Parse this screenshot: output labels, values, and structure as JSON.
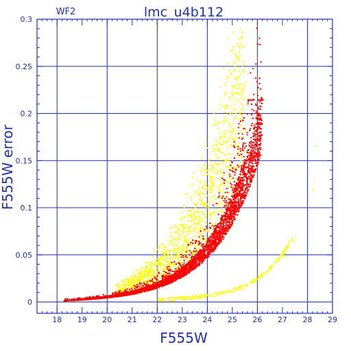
{
  "chart_data": {
    "type": "scatter",
    "title": "lmc_u4b112",
    "corner_label": "WF2",
    "xlabel": "F555W",
    "ylabel": "F555W error",
    "xlim": [
      17.2,
      29
    ],
    "ylim": [
      -0.012,
      0.3
    ],
    "x_ticks": [
      18,
      19,
      20,
      21,
      22,
      23,
      24,
      25,
      26,
      27,
      28,
      29
    ],
    "y_ticks": [
      0,
      0.05,
      0.1,
      0.15,
      0.2,
      0.25,
      0.3
    ],
    "y_tick_labels": [
      "0",
      "0.05",
      "0.1",
      "0.15",
      "0.2",
      "0.25",
      "0.3"
    ],
    "grid": true,
    "series": [
      {
        "color": "#ff0000",
        "description_points": [
          [
            18.3,
            0.002
          ],
          [
            19.0,
            0.003
          ],
          [
            20.0,
            0.005
          ],
          [
            21.0,
            0.008
          ],
          [
            22.0,
            0.013
          ],
          [
            23.0,
            0.022
          ],
          [
            23.5,
            0.029
          ],
          [
            24.0,
            0.038
          ],
          [
            24.5,
            0.052
          ],
          [
            25.0,
            0.075
          ],
          [
            25.3,
            0.095
          ],
          [
            25.6,
            0.12
          ],
          [
            25.8,
            0.145
          ],
          [
            26.0,
            0.18
          ],
          [
            26.1,
            0.213
          ]
        ]
      },
      {
        "color": "#ffff00",
        "description_points": [
          [
            20.5,
            0.008
          ],
          [
            21.5,
            0.015
          ],
          [
            22.0,
            0.022
          ],
          [
            22.5,
            0.03
          ],
          [
            23.0,
            0.045
          ],
          [
            23.5,
            0.055
          ],
          [
            24.0,
            0.075
          ],
          [
            24.5,
            0.1
          ],
          [
            25.0,
            0.145
          ],
          [
            25.5,
            0.17
          ],
          [
            21.0,
            0.0
          ],
          [
            22.5,
            0.001
          ],
          [
            24.0,
            0.003
          ],
          [
            25.5,
            0.012
          ],
          [
            26.5,
            0.03
          ],
          [
            27.0,
            0.05
          ],
          [
            27.5,
            0.07
          ],
          [
            28.2,
            0.12
          ],
          [
            28.3,
            0.165
          ]
        ]
      }
    ]
  }
}
